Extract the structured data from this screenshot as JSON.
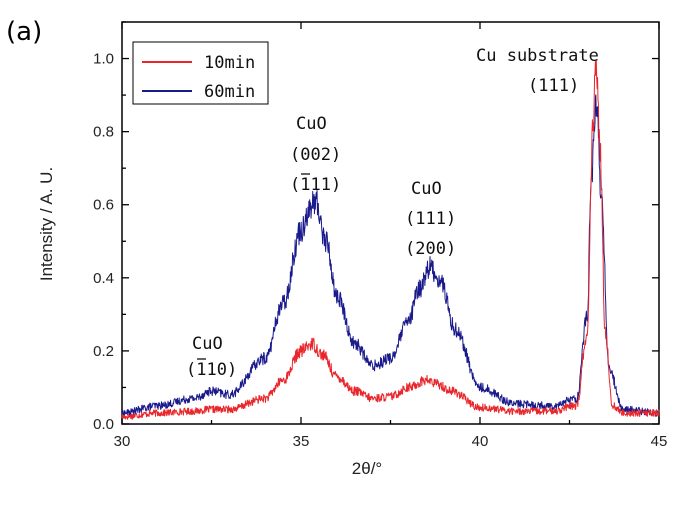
{
  "panel_label": "(a)",
  "chart_data": {
    "type": "line",
    "title": "",
    "xlabel": "2θ/°",
    "ylabel": "Intensity / A. U.",
    "xlim": [
      30,
      45
    ],
    "ylim": [
      0,
      1.1
    ],
    "x_ticks": [
      "30",
      "35",
      "40",
      "45"
    ],
    "x_tick_values": [
      30,
      35,
      40,
      45
    ],
    "y_ticks": [
      "0.0",
      "0.2",
      "0.4",
      "0.6",
      "0.8",
      "1.0"
    ],
    "y_tick_values": [
      0,
      0.2,
      0.4,
      0.6,
      0.8,
      1.0
    ],
    "legend_position": "top-left",
    "series": [
      {
        "name": "10min",
        "color": "#e8262b",
        "x": [
          30,
          31,
          32,
          32.5,
          33,
          34,
          34.5,
          35,
          35.3,
          35.6,
          36,
          36.5,
          37,
          37.5,
          38,
          38.5,
          38.8,
          39.2,
          40,
          41,
          42,
          42.7,
          43,
          43.15,
          43.25,
          43.35,
          43.5,
          43.7,
          44,
          45
        ],
        "values": [
          0.02,
          0.03,
          0.035,
          0.04,
          0.04,
          0.07,
          0.12,
          0.2,
          0.22,
          0.19,
          0.13,
          0.09,
          0.07,
          0.075,
          0.1,
          0.12,
          0.11,
          0.09,
          0.045,
          0.035,
          0.035,
          0.05,
          0.25,
          0.8,
          1.0,
          0.75,
          0.25,
          0.05,
          0.03,
          0.03
        ]
      },
      {
        "name": "60min",
        "color": "#1a1a8c",
        "x": [
          30,
          31,
          32,
          32.5,
          33,
          34,
          34.5,
          35,
          35.2,
          35.4,
          35.7,
          36,
          36.5,
          37,
          37.5,
          38,
          38.3,
          38.6,
          38.9,
          39.3,
          40,
          41,
          42,
          42.7,
          43,
          43.1,
          43.25,
          43.4,
          43.6,
          44,
          45
        ],
        "values": [
          0.03,
          0.05,
          0.07,
          0.09,
          0.08,
          0.18,
          0.33,
          0.53,
          0.58,
          0.61,
          0.5,
          0.35,
          0.22,
          0.16,
          0.18,
          0.28,
          0.37,
          0.43,
          0.39,
          0.26,
          0.1,
          0.055,
          0.05,
          0.07,
          0.3,
          0.65,
          0.88,
          0.6,
          0.15,
          0.04,
          0.03
        ]
      }
    ],
    "annotations": [
      {
        "lines": [
          "CuO",
          "(110)"
        ],
        "overbar_index": [
          1
        ],
        "x": 32.5
      },
      {
        "lines": [
          "CuO",
          "(002)",
          "(111)"
        ],
        "overbar_index": [
          2
        ],
        "x": 35.4
      },
      {
        "lines": [
          "CuO",
          "(111)",
          "(200)"
        ],
        "overbar_index": [],
        "x": 38.6
      },
      {
        "lines": [
          "Cu substrate",
          "(111)"
        ],
        "overbar_index": [],
        "x": 43.2
      }
    ]
  }
}
